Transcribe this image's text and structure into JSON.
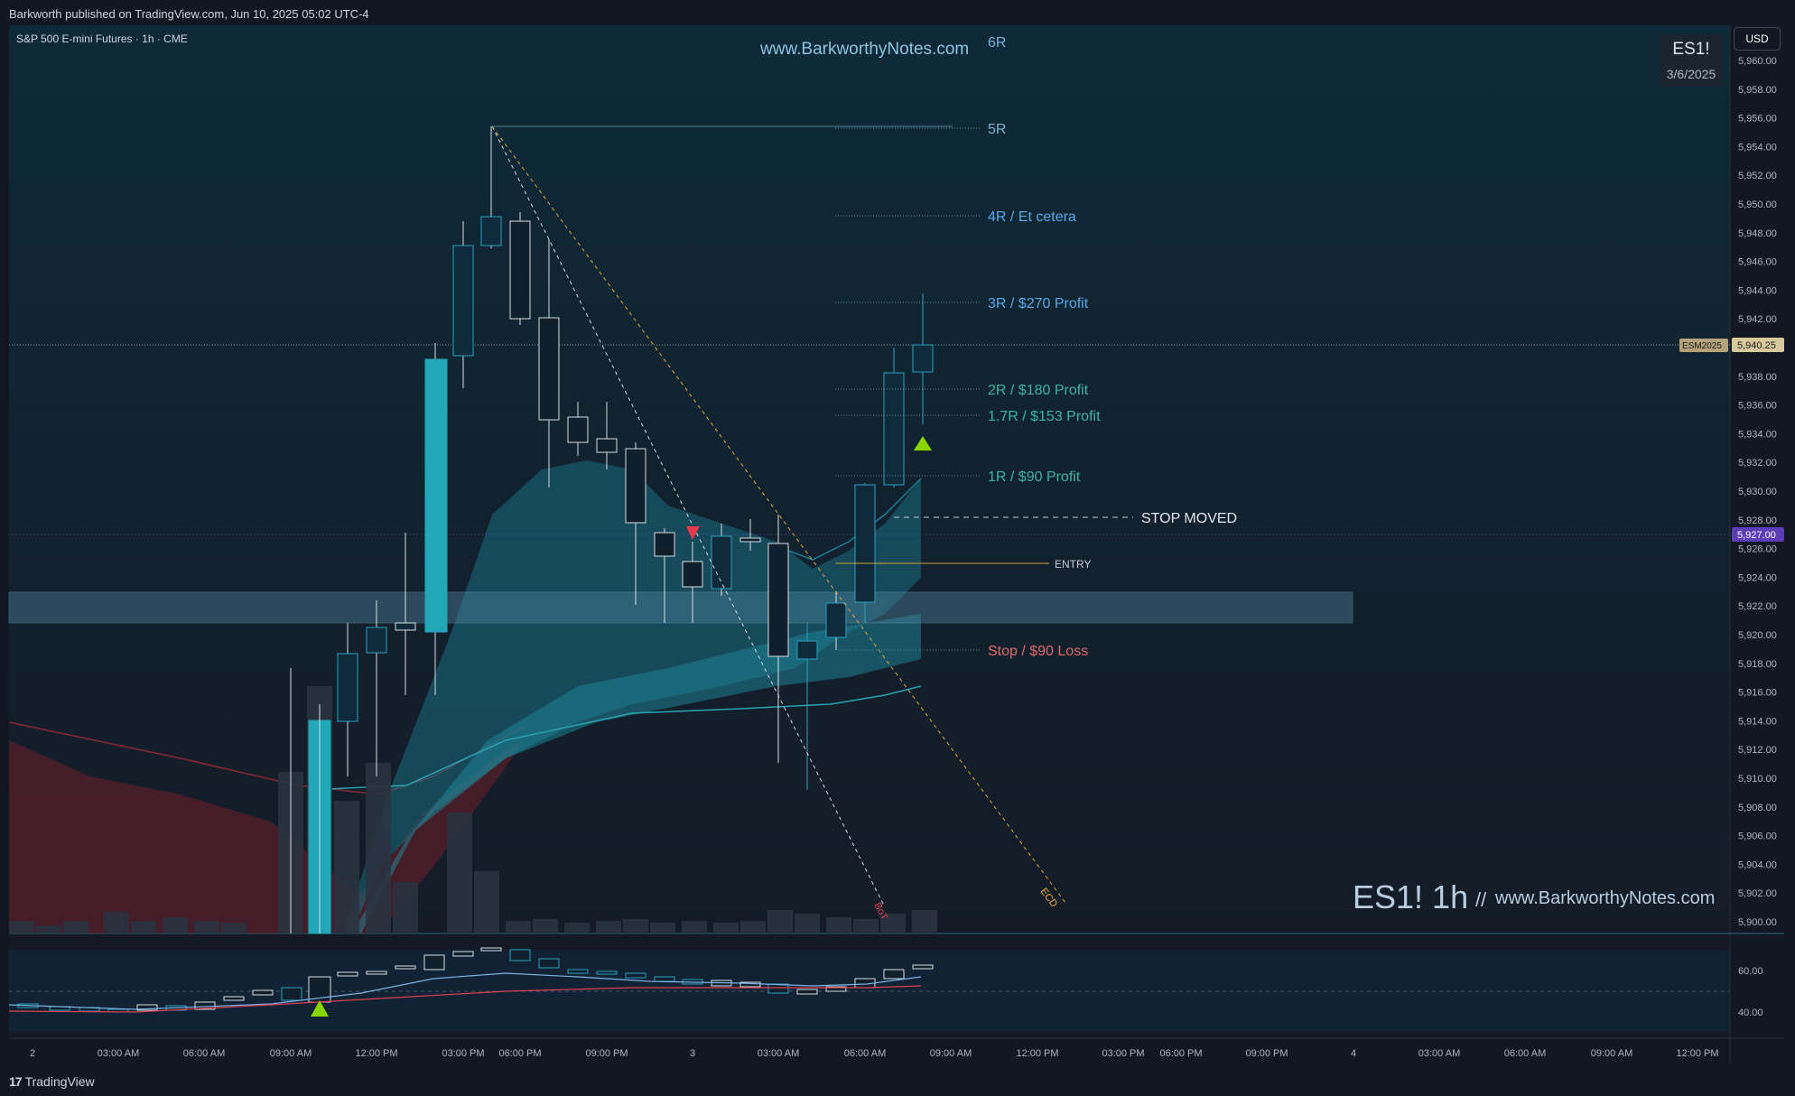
{
  "header": {
    "published": "Barkworth published on TradingView.com, Jun 10, 2025 05:02 UTC-4"
  },
  "chart": {
    "instrument": "S&P 500 E-mini Futures · 1h · CME",
    "website": "www.BarkworthyNotes.com",
    "symbol": "ES1!",
    "date": "3/6/2025",
    "currency": "USD",
    "watermark_symbol": "ES1! 1h",
    "watermark_sep": "//",
    "watermark_site": "www.BarkworthyNotes.com",
    "contract_tag": "ESM2025",
    "last_price": "5,940.25",
    "entry_price_tag": "5,927.00"
  },
  "levels": {
    "r6": "6R",
    "r5": "5R",
    "r4": "4R / Et cetera",
    "r3": "3R / $270 Profit",
    "r2": "2R / $180 Profit",
    "r17": "1.7R / $153 Profit",
    "r1": "1R / $90 Profit",
    "stop_moved": "STOP MOVED",
    "entry": "ENTRY",
    "stop": "Stop / $90 Loss"
  },
  "line_labels": {
    "bot": "BoT",
    "ecd": "ECD"
  },
  "price_axis": [
    "5,960.00",
    "5,958.00",
    "5,956.00",
    "5,954.00",
    "5,952.00",
    "5,950.00",
    "5,948.00",
    "5,946.00",
    "5,944.00",
    "5,942.00",
    "5,938.00",
    "5,936.00",
    "5,934.00",
    "5,932.00",
    "5,930.00",
    "5,928.00",
    "5,926.00",
    "5,924.00",
    "5,922.00",
    "5,920.00",
    "5,918.00",
    "5,916.00",
    "5,914.00",
    "5,912.00",
    "5,910.00",
    "5,908.00",
    "5,906.00",
    "5,904.00",
    "5,902.00",
    "5,900.00"
  ],
  "indicator_axis": [
    "60.00",
    "40.00"
  ],
  "time_axis": [
    "2",
    "03:00 AM",
    "06:00 AM",
    "09:00 AM",
    "12:00 PM",
    "03:00 PM",
    "06:00 PM",
    "09:00 PM",
    "3",
    "03:00 AM",
    "06:00 AM",
    "09:00 AM",
    "12:00 PM",
    "03:00 PM",
    "06:00 PM",
    "09:00 PM",
    "4",
    "03:00 AM",
    "06:00 AM",
    "09:00 AM",
    "12:00 PM"
  ],
  "footer": {
    "brand": "TradingView"
  },
  "colors": {
    "bg": "#131722",
    "up_candle": "#1b6b8c",
    "down_candle": "#0f2a3a",
    "accent_cyan": "#22a7b8",
    "entry_line": "#d4a23a",
    "stop": "#e06a6a",
    "profit": "#3fb5a0",
    "signal_up": "#8ad400",
    "signal_down": "#e83a4a"
  }
}
